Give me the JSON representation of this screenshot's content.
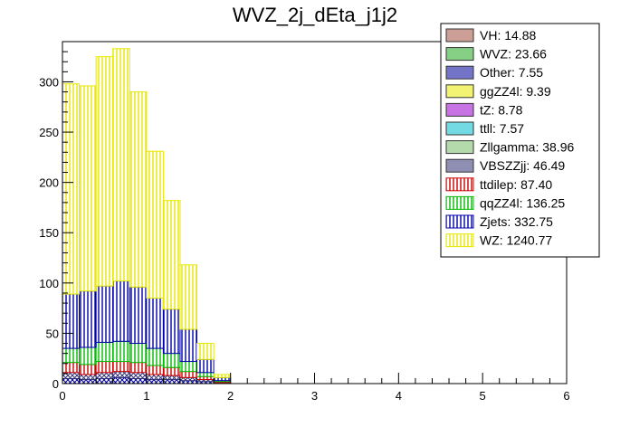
{
  "chart_data": {
    "type": "bar",
    "stacked": true,
    "title": "WVZ_2j_dEta_j1j2",
    "xlabel": "",
    "ylabel": "",
    "xlim": [
      0,
      6
    ],
    "ylim": [
      0,
      340
    ],
    "bin_width": 0.2,
    "x_ticks": [
      "0",
      "1",
      "2",
      "3",
      "4",
      "5",
      "6"
    ],
    "y_ticks": [
      "0",
      "50",
      "100",
      "150",
      "200",
      "250",
      "300"
    ],
    "y_tick_values": [
      0,
      50,
      100,
      150,
      200,
      250,
      300
    ],
    "x_tick_values": [
      0,
      1,
      2,
      3,
      4,
      5,
      6
    ],
    "bins": [
      0.0,
      0.2,
      0.4,
      0.6,
      0.8,
      1.0,
      1.2,
      1.4,
      1.6,
      1.8
    ],
    "legend_position": "top-right",
    "legend": [
      {
        "label": "VH: 14.88",
        "color": "#a05040",
        "hatch": "cross"
      },
      {
        "label": "WVZ: 23.66",
        "color": "#22aa22",
        "hatch": "cross"
      },
      {
        "label": "Other: 7.55",
        "color": "#000099",
        "hatch": "cross"
      },
      {
        "label": "ggZZ4l: 9.39",
        "color": "#e8e800",
        "hatch": "cross"
      },
      {
        "label": "tZ: 8.78",
        "color": "#9900cc",
        "hatch": "cross"
      },
      {
        "label": "ttll: 7.57",
        "color": "#00bbcc",
        "hatch": "cross"
      },
      {
        "label": "Zllgamma: 38.96",
        "color": "#77bb66",
        "hatch": "cross"
      },
      {
        "label": "VBSZZjj: 46.49",
        "color": "#333377",
        "hatch": "cross"
      },
      {
        "label": "ttdilep: 87.40",
        "color": "#cc0000",
        "hatch": "vertical"
      },
      {
        "label": "qqZZ4l: 136.25",
        "color": "#00bb00",
        "hatch": "vertical"
      },
      {
        "label": "Zjets: 332.75",
        "color": "#0000aa",
        "hatch": "vertical"
      },
      {
        "label": "WZ: 1240.77",
        "color": "#e8e800",
        "hatch": "vertical"
      }
    ],
    "series": [
      {
        "name": "Other",
        "color": "#000099",
        "values": [
          5,
          4,
          5,
          6,
          5,
          4,
          4,
          3,
          2,
          0.5
        ]
      },
      {
        "name": "VBSZZjj",
        "color": "#333377",
        "values": [
          6,
          5,
          6,
          6,
          6,
          5,
          4,
          3,
          2,
          0.5
        ]
      },
      {
        "name": "ttdilep",
        "color": "#cc0000",
        "values": [
          10,
          10,
          11,
          10,
          10,
          9,
          8,
          6,
          3,
          1
        ]
      },
      {
        "name": "qqZZ4l",
        "color": "#00bb00",
        "values": [
          14,
          17,
          19,
          20,
          19,
          17,
          14,
          10,
          4,
          1
        ]
      },
      {
        "name": "Zjets",
        "color": "#0000aa",
        "values": [
          54,
          56,
          56,
          60,
          56,
          50,
          44,
          32,
          13,
          3
        ]
      },
      {
        "name": "WZ",
        "color": "#e8e800",
        "values": [
          209,
          204,
          228,
          231,
          194,
          146,
          108,
          64,
          16,
          3
        ]
      }
    ]
  }
}
